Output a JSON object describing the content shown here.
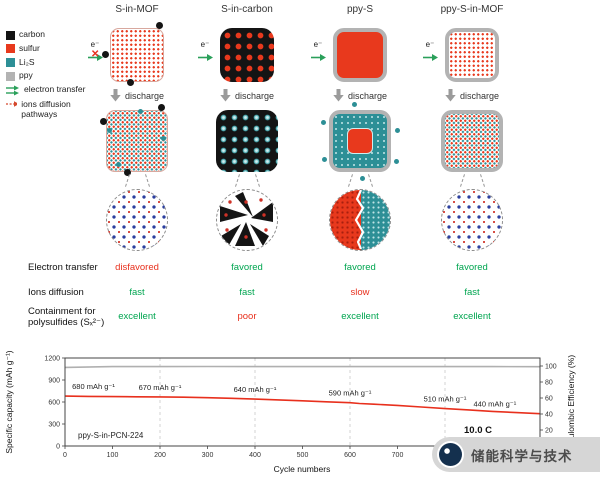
{
  "figure": {
    "columns": [
      {
        "title": "S-in-MOF",
        "electron_transfer": "disfavored",
        "ions_diffusion": "fast",
        "containment": "excellent"
      },
      {
        "title": "S-in-carbon",
        "electron_transfer": "favored",
        "ions_diffusion": "fast",
        "containment": "poor"
      },
      {
        "title": "ppy-S",
        "electron_transfer": "favored",
        "ions_diffusion": "slow",
        "containment": "excellent"
      },
      {
        "title": "ppy-S-in-MOF",
        "electron_transfer": "favored",
        "ions_diffusion": "fast",
        "containment": "excellent"
      }
    ],
    "legend": [
      {
        "label": "carbon",
        "color": "#141414"
      },
      {
        "label": "sulfur",
        "color": "#e8391d"
      },
      {
        "label": "Li₂S",
        "color": "#2d8f96"
      },
      {
        "label": "ppy",
        "color": "#b3b3b3"
      },
      {
        "label": "electron transfer",
        "icon": "green-double-arrow"
      },
      {
        "label": "ions diffusion pathways",
        "icon": "red-dashed-arrow"
      }
    ],
    "electron_label": "e⁻",
    "discharge_label": "discharge",
    "icons": {
      "blocked_cross": "✕"
    },
    "row_labels": {
      "electron_transfer": "Electron transfer",
      "ions_diffusion": "Ions diffusion",
      "containment_line1": "Containment for",
      "containment_line2": "polysulfides (Sₓ²⁻)"
    },
    "status_colors": {
      "favored": "#00a550",
      "disfavored": "#e8301d"
    }
  },
  "chart_data": {
    "type": "line",
    "xlabel": "Cycle numbers",
    "ylabel_left": "Specific capacity (mAh g⁻¹)",
    "ylabel_right": "Coulombic Efficiency (%)",
    "xlim": [
      0,
      1000
    ],
    "ylim_left": [
      0,
      1200
    ],
    "ylim_right": [
      0,
      110
    ],
    "x_ticks": [
      0,
      100,
      200,
      300,
      400,
      500,
      600,
      700,
      800,
      900,
      1000
    ],
    "y_ticks_left": [
      0,
      300,
      600,
      900,
      1200
    ],
    "y_ticks_right": [
      0,
      20,
      40,
      60,
      80,
      100
    ],
    "gridlines_x": [
      200,
      400,
      600,
      800
    ],
    "series": [
      {
        "name": "Specific capacity",
        "color": "#e8301d",
        "axis": "left",
        "x": [
          0,
          50,
          100,
          150,
          200,
          250,
          300,
          350,
          400,
          450,
          500,
          550,
          600,
          620,
          650,
          700,
          750,
          800,
          850,
          900,
          950,
          1000
        ],
        "values": [
          680,
          676,
          673,
          671,
          670,
          666,
          659,
          650,
          640,
          629,
          617,
          603,
          590,
          580,
          570,
          553,
          532,
          510,
          492,
          472,
          455,
          440
        ]
      },
      {
        "name": "Coulombic Efficiency",
        "color": "#b0b0b0",
        "axis": "right",
        "x": [
          0,
          100,
          200,
          300,
          400,
          500,
          600,
          700,
          800,
          900,
          1000
        ],
        "values": [
          98.2,
          99.3,
          99.2,
          99.4,
          99.3,
          99.2,
          99.3,
          99.2,
          99.3,
          99.2,
          99.1
        ]
      }
    ],
    "annotations": [
      {
        "text": "680 mAh g⁻¹",
        "x": 15,
        "y": 680,
        "anchor": "start"
      },
      {
        "text": "670 mAh g⁻¹",
        "x": 200,
        "y": 670,
        "anchor": "middle"
      },
      {
        "text": "640 mAh g⁻¹",
        "x": 400,
        "y": 640,
        "anchor": "middle"
      },
      {
        "text": "590 mAh g⁻¹",
        "x": 600,
        "y": 590,
        "anchor": "middle"
      },
      {
        "text": "510 mAh g⁻¹",
        "x": 800,
        "y": 510,
        "anchor": "middle"
      },
      {
        "text": "440 mAh g⁻¹",
        "x": 950,
        "y": 440,
        "anchor": "end"
      }
    ],
    "sample_label": "ppy-S-in-PCN-224",
    "rate_label": "10.0 C"
  },
  "watermark": {
    "text": "储能科学与技术"
  }
}
